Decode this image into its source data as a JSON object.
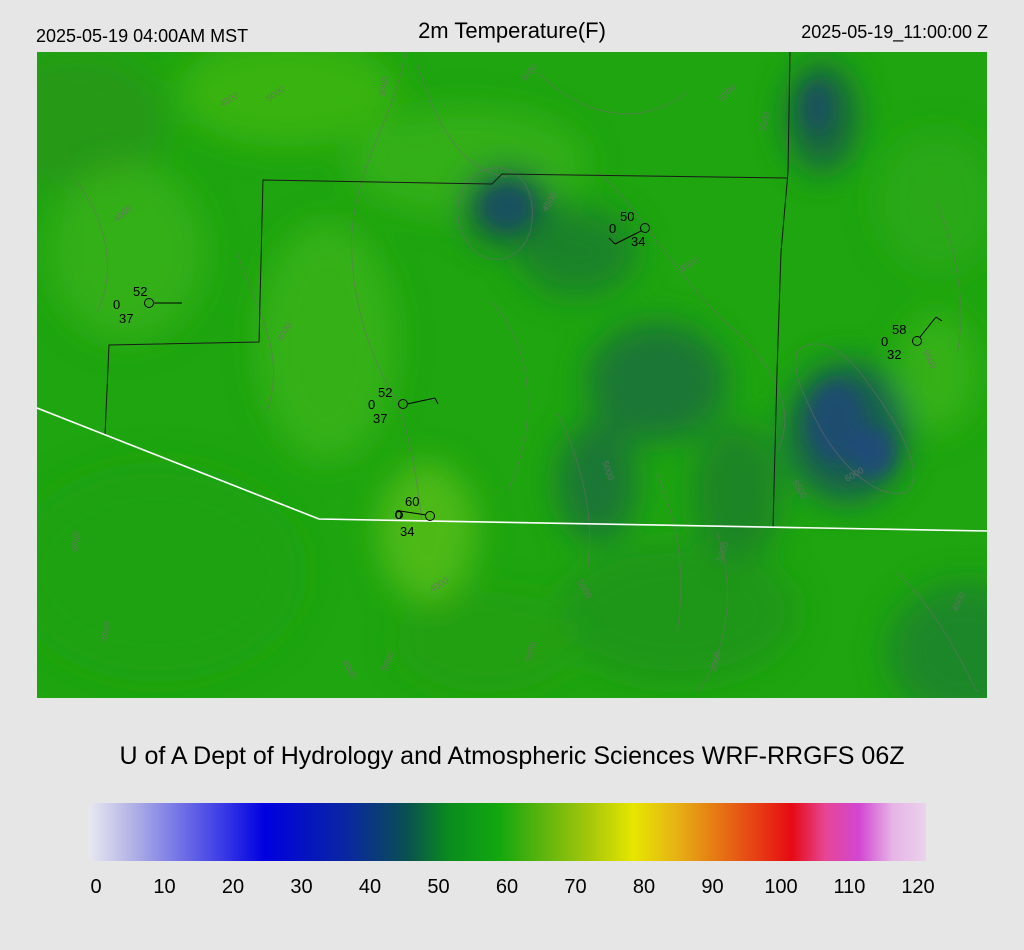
{
  "header": {
    "local_time": "2025-05-19 04:00AM MST",
    "title": "2m Temperature(F)",
    "utc_time": "2025-05-19_11:00:00 Z"
  },
  "credit": "U of A Dept of Hydrology and Atmospheric Sciences WRF-RRGFS 06Z",
  "colorbar": {
    "ticks": [
      "0",
      "10",
      "20",
      "30",
      "40",
      "50",
      "60",
      "70",
      "80",
      "90",
      "100",
      "110",
      "120"
    ]
  },
  "stations": [
    {
      "temp": "52",
      "dewpoint": "37",
      "code": "0"
    },
    {
      "temp": "50",
      "dewpoint": "34",
      "code": "0"
    },
    {
      "temp": "52",
      "dewpoint": "37",
      "code": "0"
    },
    {
      "temp": "60",
      "dewpoint": "34",
      "code": "0"
    },
    {
      "temp": "58",
      "dewpoint": "32",
      "code": "0"
    }
  ],
  "contour_labels": [
    "4000",
    "5000",
    "3000",
    "6000",
    "5500",
    "4500",
    "7000",
    "6500"
  ],
  "colors": {
    "background": "#e6e6e6",
    "field_base": "#1ea50f",
    "boundary": "#1a1a1a",
    "border": "#ffffff"
  }
}
